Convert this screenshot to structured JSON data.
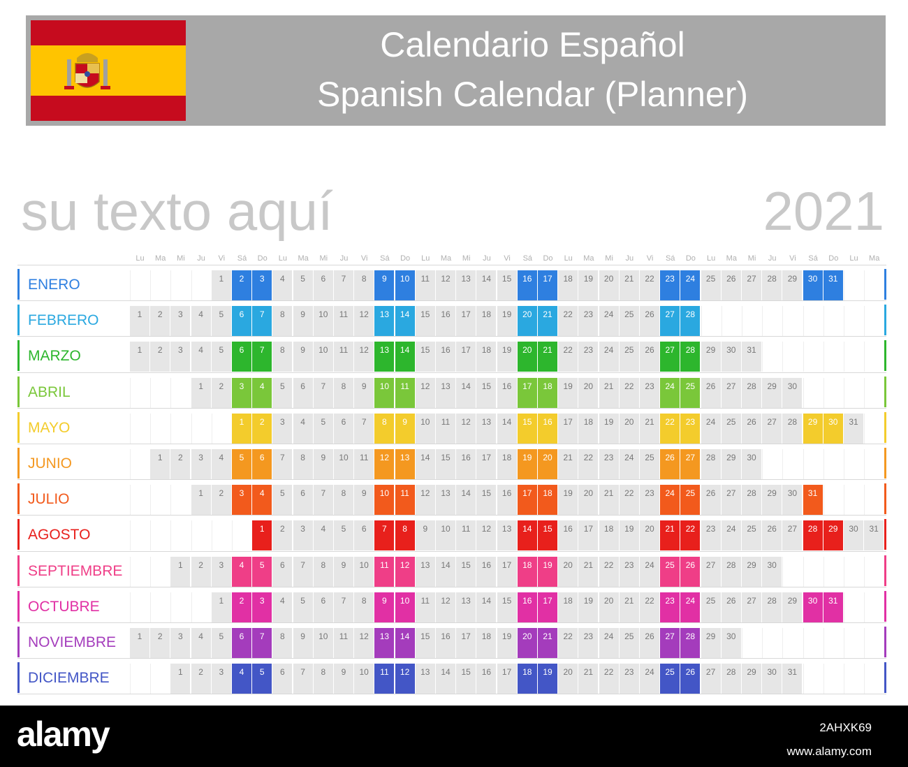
{
  "header": {
    "title_line1": "Calendario Español",
    "title_line2": "Spanish Calendar (Planner)",
    "flag_colors": {
      "red": "#c60b1e",
      "yellow": "#ffc400"
    }
  },
  "subtitle": "su texto aquí",
  "year": "2021",
  "day_headers": [
    "Lu",
    "Ma",
    "Mi",
    "Ju",
    "Vi",
    "Sá",
    "Do",
    "Lu",
    "Ma",
    "Mi",
    "Ju",
    "Vi",
    "Sá",
    "Do",
    "Lu",
    "Ma",
    "Mi",
    "Ju",
    "Vi",
    "Sá",
    "Do",
    "Lu",
    "Ma",
    "Mi",
    "Ju",
    "Vi",
    "Sá",
    "Do",
    "Lu",
    "Ma",
    "Mi",
    "Ju",
    "Vi",
    "Sá",
    "Do",
    "Lu",
    "Ma"
  ],
  "months": [
    {
      "name": "ENERO",
      "offset": 4,
      "days": 31,
      "color": "#2e7fe0"
    },
    {
      "name": "FEBRERO",
      "offset": 0,
      "days": 28,
      "color": "#2aa8e0"
    },
    {
      "name": "MARZO",
      "offset": 0,
      "days": 31,
      "color": "#2db62d"
    },
    {
      "name": "ABRIL",
      "offset": 3,
      "days": 30,
      "color": "#7ac73a"
    },
    {
      "name": "MAYO",
      "offset": 5,
      "days": 31,
      "color": "#f3cc2c"
    },
    {
      "name": "JUNIO",
      "offset": 1,
      "days": 30,
      "color": "#f49820"
    },
    {
      "name": "JULIO",
      "offset": 3,
      "days": 31,
      "color": "#f25a1c"
    },
    {
      "name": "AGOSTO",
      "offset": 6,
      "days": 31,
      "color": "#e8201c"
    },
    {
      "name": "SEPTIEMBRE",
      "offset": 2,
      "days": 30,
      "color": "#ef3e87"
    },
    {
      "name": "OCTUBRE",
      "offset": 4,
      "days": 31,
      "color": "#e130a4"
    },
    {
      "name": "NOVIEMBRE",
      "offset": 0,
      "days": 30,
      "color": "#a43cbc"
    },
    {
      "name": "DICIEMBRE",
      "offset": 2,
      "days": 31,
      "color": "#4356c6"
    }
  ],
  "footer": {
    "logo": "alamy",
    "image_id": "2AHXK69",
    "url": "www.alamy.com"
  }
}
